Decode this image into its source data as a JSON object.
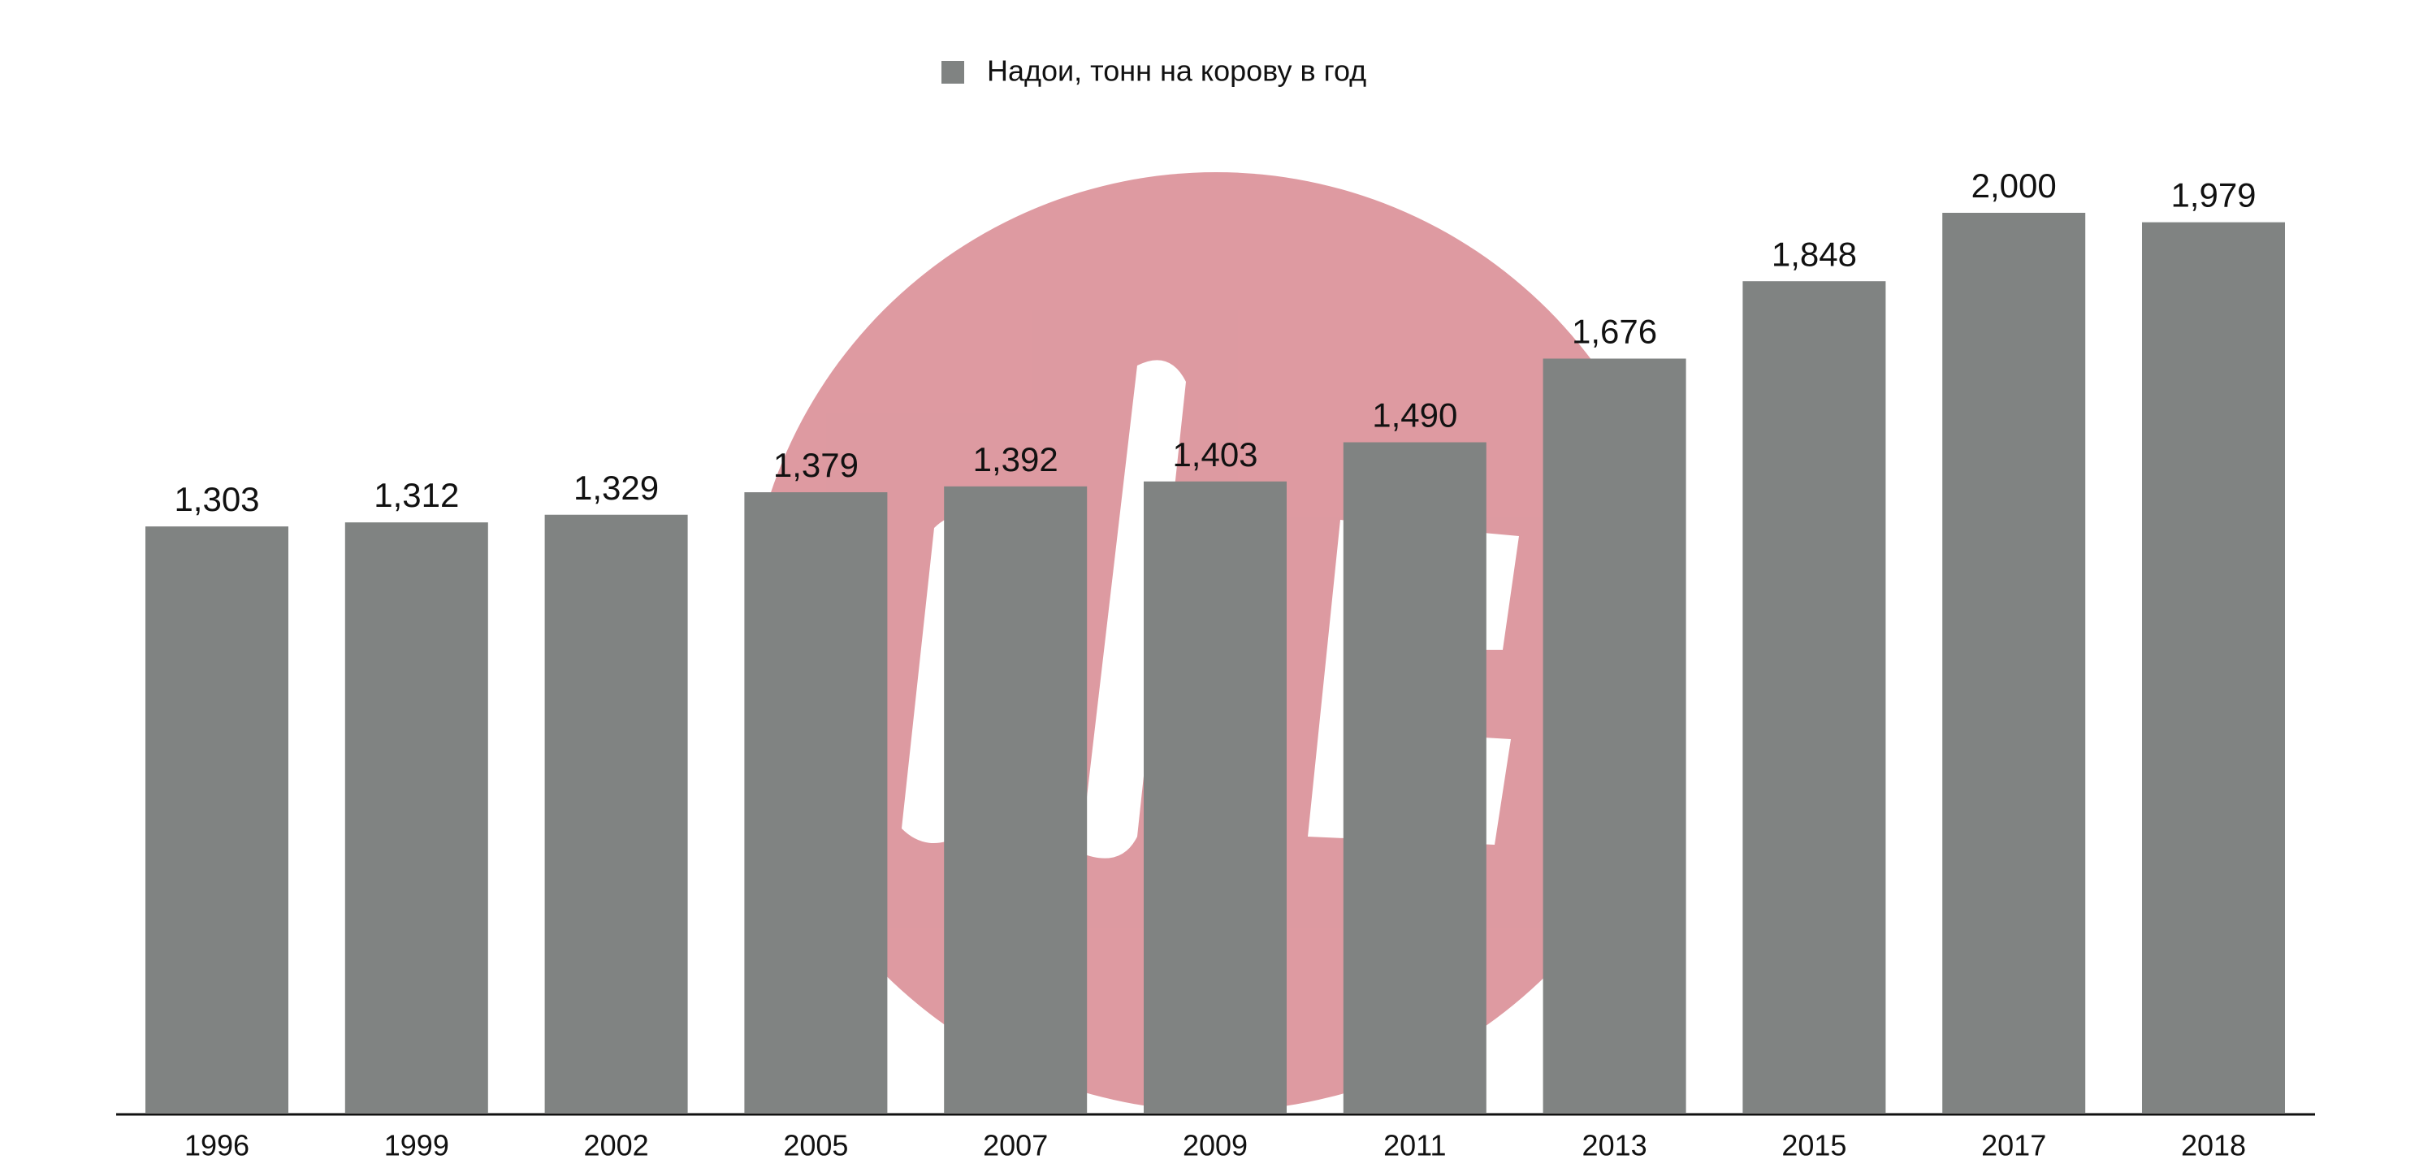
{
  "chart_data": {
    "type": "bar",
    "categories": [
      "1996",
      "1999",
      "2002",
      "2005",
      "2007",
      "2009",
      "2011",
      "2013",
      "2015",
      "2017",
      "2018"
    ],
    "series": [
      {
        "name": "Надои, тонн на корову в год",
        "color": "#808382",
        "values": [
          1303,
          1312,
          1329,
          1379,
          1392,
          1403,
          1490,
          1676,
          1848,
          2000,
          1979
        ],
        "value_labels": [
          "1,303",
          "1,312",
          "1,329",
          "1,379",
          "1,392",
          "1,403",
          "1,490",
          "1,676",
          "1,848",
          "2,000",
          "1,979"
        ]
      }
    ],
    "legend": "top"
  }
}
